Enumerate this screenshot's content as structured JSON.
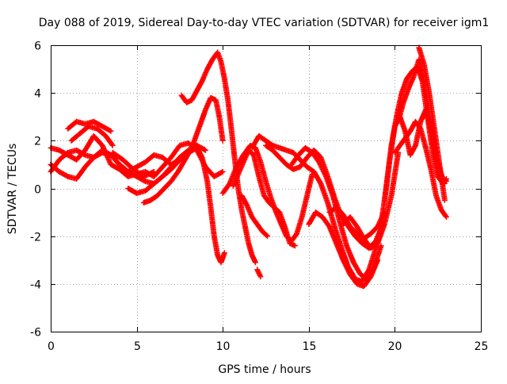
{
  "chart_data": {
    "type": "scatter",
    "title": "Day 088 of 2019, Sidereal Day-to-day VTEC variation (SDTVAR) for receiver igm1",
    "xlabel": "GPS time / hours",
    "ylabel": "SDTVAR / TECUs",
    "xlim": [
      0,
      25
    ],
    "ylim": [
      -6,
      6
    ],
    "xticks": [
      "0",
      "5",
      "10",
      "15",
      "20",
      "25"
    ],
    "yticks": [
      "-6",
      "-4",
      "-2",
      "0",
      "2",
      "4",
      "6"
    ],
    "grid": true,
    "marker": "+",
    "color": "#ff0000",
    "series": [
      {
        "x": [
          0.0,
          0.5,
          1.0,
          1.5,
          2.0,
          2.5,
          3.0,
          3.5,
          4.0,
          4.5,
          5.0,
          5.5,
          6.0,
          6.5,
          7.0,
          7.5,
          8.0,
          8.5,
          9.0,
          9.5,
          10.0
        ],
        "y": [
          1.7,
          1.6,
          1.4,
          1.2,
          1.6,
          2.2,
          1.8,
          1.0,
          0.8,
          0.5,
          0.6,
          0.7,
          0.5,
          0.9,
          1.3,
          1.8,
          1.9,
          1.6,
          0.9,
          0.5,
          0.7
        ]
      },
      {
        "x": [
          0.0,
          0.5,
          1.0,
          1.5,
          2.0,
          2.5,
          3.0,
          3.5,
          4.0,
          4.5,
          5.0,
          5.5,
          6.0,
          6.5,
          7.0,
          7.5,
          8.0,
          8.5
        ],
        "y": [
          0.7,
          1.2,
          1.5,
          1.6,
          1.4,
          1.3,
          1.5,
          1.4,
          1.0,
          0.7,
          0.5,
          0.3,
          0.2,
          0.5,
          0.9,
          1.3,
          1.6,
          1.8
        ]
      },
      {
        "x": [
          0.0,
          0.5,
          1.0,
          1.5,
          2.0,
          2.5,
          3.0,
          3.5,
          4.0,
          4.5,
          5.0,
          5.5,
          6.0,
          6.5,
          7.0,
          7.5,
          8.0,
          8.5,
          9.0
        ],
        "y": [
          1.0,
          0.7,
          0.5,
          0.4,
          0.9,
          1.3,
          1.6,
          1.4,
          1.0,
          0.7,
          0.9,
          1.1,
          1.4,
          1.3,
          1.0,
          1.2,
          1.5,
          1.8,
          1.6
        ]
      },
      {
        "x": [
          1.0,
          1.5,
          2.0,
          2.5,
          3.0,
          3.5
        ],
        "y": [
          2.5,
          2.8,
          2.7,
          2.8,
          2.6,
          2.4
        ]
      },
      {
        "x": [
          1.2,
          1.7,
          2.2,
          2.7,
          3.2,
          3.6
        ],
        "y": [
          2.0,
          2.3,
          2.6,
          2.5,
          2.2,
          1.8
        ]
      },
      {
        "x": [
          3.6,
          4.2,
          4.8,
          5.4,
          6.0
        ],
        "y": [
          1.5,
          1.2,
          0.8,
          0.5,
          0.7
        ]
      },
      {
        "x": [
          4.5,
          5.0,
          5.5,
          6.0,
          6.5,
          7.0,
          7.5,
          8.0,
          8.5,
          8.8,
          9.1,
          9.3,
          9.5,
          9.7,
          9.9,
          10.1
        ],
        "y": [
          0.0,
          -0.2,
          -0.1,
          0.2,
          0.5,
          0.8,
          1.2,
          1.5,
          1.7,
          1.3,
          0.3,
          -0.8,
          -2.0,
          -2.8,
          -3.1,
          -2.7
        ]
      },
      {
        "x": [
          5.4,
          5.8,
          6.2,
          6.6,
          7.0,
          7.4,
          7.8,
          8.2,
          8.6,
          9.0,
          9.3,
          9.6,
          9.8,
          10.0
        ],
        "y": [
          -0.6,
          -0.5,
          -0.3,
          0.0,
          0.3,
          0.7,
          1.2,
          1.7,
          2.5,
          3.3,
          3.8,
          3.7,
          3.0,
          2.0
        ]
      },
      {
        "x": [
          7.6,
          7.9,
          8.2,
          8.5,
          8.8,
          9.1,
          9.4,
          9.7,
          9.9,
          10.1,
          10.3,
          10.5,
          10.7,
          10.9,
          11.1,
          11.3,
          11.5,
          11.7,
          11.9
        ],
        "y": [
          3.9,
          3.6,
          3.7,
          4.1,
          4.5,
          5.0,
          5.4,
          5.7,
          5.3,
          4.6,
          3.7,
          2.5,
          1.2,
          0.0,
          -0.9,
          -1.6,
          -2.3,
          -2.8,
          -3.1
        ]
      },
      {
        "x": [
          10.0,
          10.4,
          10.8,
          11.2,
          11.6,
          11.9,
          12.2,
          12.5,
          12.8,
          13.1,
          13.4,
          13.7,
          14.0,
          14.3,
          14.6,
          14.9,
          15.2
        ],
        "y": [
          -0.2,
          0.2,
          0.9,
          1.4,
          1.8,
          1.7,
          1.1,
          0.3,
          -0.4,
          -1.0,
          -1.5,
          -2.0,
          -2.2,
          -1.9,
          -1.2,
          -0.3,
          0.6
        ]
      },
      {
        "x": [
          10.6,
          10.9,
          11.2,
          11.5,
          11.8,
          12.1,
          12.4,
          12.7,
          13.0,
          13.3,
          13.6,
          13.9,
          14.2
        ],
        "y": [
          0.1,
          0.6,
          1.1,
          1.6,
          1.4,
          0.5,
          -0.3,
          -0.6,
          -0.8,
          -1.0,
          -1.6,
          -2.3,
          -2.4
        ]
      },
      {
        "x": [
          11.1,
          11.4,
          11.7,
          12.0,
          12.3,
          12.6
        ],
        "y": [
          -0.3,
          -0.7,
          -1.2,
          -1.5,
          -1.8,
          -2.0
        ]
      },
      {
        "x": [
          12.0,
          12.2
        ],
        "y": [
          -3.4,
          -3.7
        ]
      },
      {
        "x": [
          11.7,
          12.1,
          12.5,
          12.9,
          13.3,
          13.7,
          14.1,
          14.5,
          14.9,
          15.3,
          15.7,
          16.1,
          16.5,
          16.9,
          17.3,
          17.7,
          18.1,
          18.5,
          18.9,
          19.3
        ],
        "y": [
          1.7,
          2.2,
          2.0,
          1.8,
          1.7,
          1.6,
          1.5,
          1.2,
          0.9,
          0.7,
          0.2,
          -0.6,
          -1.6,
          -2.5,
          -3.3,
          -3.8,
          -3.9,
          -3.4,
          -2.5,
          -1.4
        ]
      },
      {
        "x": [
          12.5,
          12.9,
          13.3,
          13.7,
          14.1,
          14.5,
          14.9,
          15.3,
          15.7,
          16.1,
          16.5,
          16.9,
          17.3,
          17.7,
          18.1,
          18.5,
          18.9,
          19.3
        ],
        "y": [
          1.8,
          1.6,
          1.3,
          1.0,
          0.8,
          0.9,
          1.3,
          1.6,
          1.3,
          0.5,
          -0.4,
          -1.2,
          -1.6,
          -2.0,
          -2.3,
          -2.5,
          -2.2,
          -1.5
        ]
      },
      {
        "x": [
          14.0,
          14.4,
          14.8,
          15.2,
          15.6,
          16.0,
          16.4,
          16.8,
          17.2,
          17.6,
          18.0,
          18.4,
          18.8,
          19.2
        ],
        "y": [
          1.0,
          1.4,
          1.7,
          1.5,
          1.1,
          0.5,
          -0.3,
          -1.4,
          -2.4,
          -3.1,
          -3.6,
          -3.8,
          -3.3,
          -2.4
        ]
      },
      {
        "x": [
          15.0,
          15.4,
          15.8,
          16.2,
          16.6,
          17.0,
          17.4,
          17.8,
          18.2,
          18.6,
          19.0
        ],
        "y": [
          -1.5,
          -1.0,
          -1.2,
          -1.6,
          -2.3,
          -3.0,
          -3.6,
          -4.0,
          -4.1,
          -3.7,
          -3.0
        ]
      },
      {
        "x": [
          16.2,
          16.6,
          17.0,
          17.4,
          17.8,
          18.2,
          18.6,
          19.0,
          19.4
        ],
        "y": [
          -1.0,
          -0.8,
          -1.1,
          -1.6,
          -1.9,
          -2.1,
          -1.9,
          -1.6,
          -1.0
        ]
      },
      {
        "x": [
          17.0,
          17.4,
          17.8,
          18.2,
          18.6,
          19.0,
          19.4,
          19.8,
          20.2
        ],
        "y": [
          -1.5,
          -1.2,
          -1.6,
          -2.1,
          -2.5,
          -2.3,
          -1.5,
          -0.3,
          1.5
        ]
      },
      {
        "x": [
          19.2,
          19.5,
          19.8,
          20.1,
          20.4,
          20.7,
          21.0,
          21.3,
          21.6,
          21.9,
          22.2,
          22.5,
          22.8,
          23.0
        ],
        "y": [
          -1.5,
          0.0,
          1.8,
          3.0,
          4.0,
          4.6,
          4.9,
          5.1,
          4.5,
          3.0,
          1.5,
          0.5,
          0.2,
          0.4
        ]
      },
      {
        "x": [
          19.4,
          19.7,
          20.0,
          20.3,
          20.6,
          20.9,
          21.2,
          21.5,
          21.8,
          22.1,
          22.4,
          22.7,
          23.0
        ],
        "y": [
          -0.5,
          1.2,
          2.6,
          3.0,
          2.4,
          1.4,
          1.8,
          2.8,
          3.3,
          2.4,
          1.2,
          0.4,
          0.3
        ]
      },
      {
        "x": [
          20.0,
          20.3,
          20.6,
          20.9,
          21.2,
          21.5,
          21.8,
          22.1,
          22.4,
          22.7,
          23.0
        ],
        "y": [
          1.5,
          1.8,
          2.1,
          2.4,
          2.8,
          2.5,
          1.7,
          0.8,
          -0.3,
          -0.9,
          -1.2
        ]
      },
      {
        "x": [
          20.2,
          20.5,
          20.8,
          21.1,
          21.4,
          21.7,
          22.0,
          22.3,
          22.6,
          22.9
        ],
        "y": [
          2.8,
          3.6,
          4.2,
          4.7,
          5.4,
          4.5,
          3.0,
          1.6,
          0.8,
          0.2
        ]
      },
      {
        "x": [
          21.4,
          21.7,
          22.0,
          22.3,
          22.6,
          22.9
        ],
        "y": [
          5.9,
          5.2,
          4.0,
          2.5,
          1.0,
          -0.5
        ]
      }
    ]
  }
}
